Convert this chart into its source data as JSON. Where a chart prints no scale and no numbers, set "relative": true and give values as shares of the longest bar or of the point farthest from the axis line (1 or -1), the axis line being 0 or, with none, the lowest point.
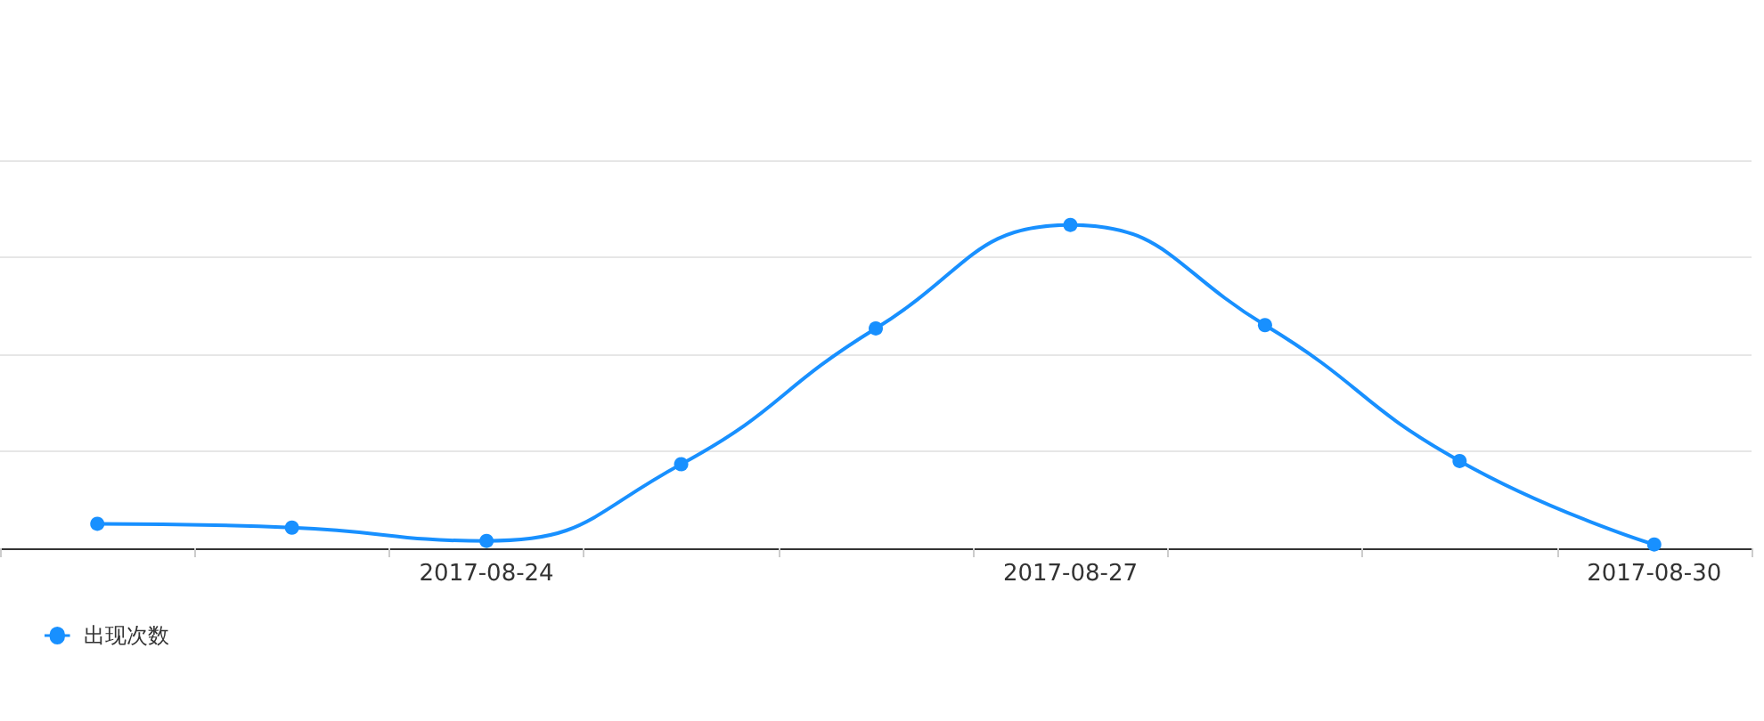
{
  "chart_data": {
    "type": "line",
    "relative": true,
    "categories": [
      null,
      null,
      "2017-08-24",
      null,
      null,
      "2017-08-27",
      null,
      null,
      "2017-08-30"
    ],
    "series": [
      {
        "name": "出现次数",
        "color": "#1890ff",
        "values": [
          0.076,
          0.064,
          0.023,
          0.26,
          0.68,
          1,
          0.69,
          0.27,
          0.012
        ]
      }
    ],
    "grid": "y",
    "legend": "bottom left",
    "marker": "circle",
    "line_style": "solid"
  }
}
